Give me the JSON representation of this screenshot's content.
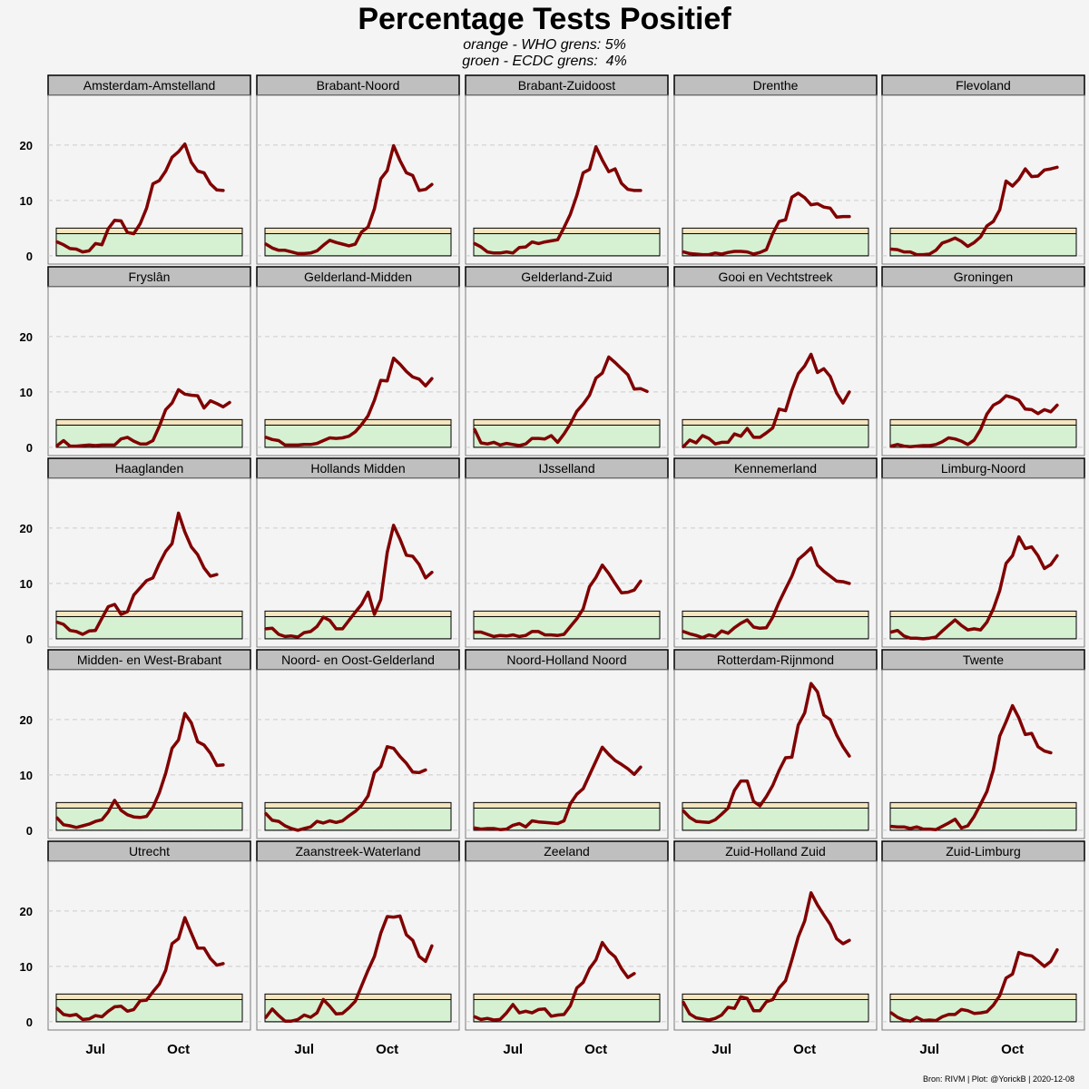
{
  "title": "Percentage Tests Positief",
  "subtitle_line1": "orange - WHO grens: 5%",
  "subtitle_line2": "groen - ECDC grens:  4%",
  "source": "Bron: RIVM | Plot: @YorickB |  2020-12-08",
  "colors": {
    "line": "#800000",
    "who_band": "#f5e6bf",
    "ecdc_band": "#d6f0d2",
    "strip": "#bfbfbf",
    "panel_bg": "#f4f4f4",
    "grid": "#cccccc"
  },
  "chart_data": {
    "type": "line",
    "title": "Percentage Tests Positief",
    "ylim": [
      -1.5,
      29
    ],
    "y_ticks": [
      0,
      10,
      20
    ],
    "x_ticks": [
      "Jul",
      "Oct"
    ],
    "x_tick_positions": [
      6,
      19
    ],
    "x_range": [
      0,
      28
    ],
    "grid": "horizontal dashed",
    "thresholds": [
      {
        "label": "orange - WHO grens: 5%",
        "value": 5
      },
      {
        "label": "groen - ECDC grens:  4%",
        "value": 4
      }
    ],
    "panels": [
      {
        "name": "Amsterdam-Amstelland",
        "values": [
          2.5,
          2.0,
          1.3,
          1.2,
          0.7,
          0.9,
          2.2,
          2.0,
          4.9,
          6.4,
          6.3,
          4.2,
          4.0,
          5.8,
          8.6,
          13.0,
          13.6,
          15.3,
          17.8,
          18.8,
          20.2,
          16.9,
          15.3,
          15.0,
          13.0,
          11.9,
          11.8
        ]
      },
      {
        "name": "Brabant-Noord",
        "values": [
          2.1,
          1.4,
          1.0,
          1.0,
          0.7,
          0.4,
          0.4,
          0.5,
          0.9,
          1.9,
          2.8,
          2.4,
          2.1,
          1.8,
          2.1,
          4.3,
          5.2,
          8.5,
          13.9,
          15.4,
          19.9,
          17.2,
          15.0,
          14.5,
          11.8,
          12.0,
          12.9
        ]
      },
      {
        "name": "Brabant-Zuidoost",
        "values": [
          2.2,
          1.6,
          0.7,
          0.5,
          0.5,
          0.7,
          0.5,
          1.5,
          1.6,
          2.5,
          2.2,
          2.5,
          2.7,
          2.9,
          5.1,
          7.5,
          10.9,
          15.0,
          15.6,
          19.7,
          17.3,
          15.2,
          15.7,
          13.1,
          12.0,
          11.8,
          11.8
        ]
      },
      {
        "name": "Drenthe",
        "values": [
          0.7,
          0.4,
          0.3,
          0.2,
          0.2,
          0.5,
          0.3,
          0.6,
          0.8,
          0.8,
          0.7,
          0.3,
          0.6,
          1.1,
          4.0,
          6.2,
          6.5,
          10.6,
          11.3,
          10.5,
          9.2,
          9.4,
          8.8,
          8.6,
          7.0,
          7.1,
          7.1
        ]
      },
      {
        "name": "Flevoland",
        "values": [
          1.2,
          1.1,
          0.7,
          0.7,
          0.2,
          0.2,
          0.3,
          1.0,
          2.3,
          2.7,
          3.2,
          2.6,
          1.7,
          2.4,
          3.4,
          5.4,
          6.2,
          8.3,
          13.5,
          12.6,
          13.8,
          15.7,
          14.3,
          14.4,
          15.5,
          15.7,
          16.0
        ]
      },
      {
        "name": "Fryslân",
        "values": [
          0.3,
          1.2,
          0.2,
          0.2,
          0.3,
          0.4,
          0.3,
          0.4,
          0.4,
          0.4,
          1.5,
          1.8,
          1.1,
          0.6,
          0.6,
          1.2,
          3.8,
          6.8,
          8.0,
          10.4,
          9.6,
          9.4,
          9.3,
          7.1,
          8.4,
          7.9,
          7.3,
          8.1
        ]
      },
      {
        "name": "Gelderland-Midden",
        "values": [
          1.8,
          1.4,
          1.2,
          0.4,
          0.4,
          0.4,
          0.5,
          0.5,
          0.7,
          1.2,
          1.7,
          1.6,
          1.7,
          2.0,
          2.8,
          4.1,
          5.7,
          8.5,
          12.1,
          12.0,
          16.1,
          15.0,
          13.7,
          12.7,
          12.3,
          11.1,
          12.4
        ]
      },
      {
        "name": "Gelderland-Zuid",
        "values": [
          3.2,
          0.8,
          0.6,
          0.9,
          0.4,
          0.7,
          0.5,
          0.3,
          0.6,
          1.6,
          1.6,
          1.5,
          2.1,
          0.9,
          2.4,
          4.2,
          6.5,
          7.8,
          9.4,
          12.5,
          13.4,
          16.3,
          15.3,
          14.2,
          13.1,
          10.5,
          10.6,
          10.1
        ]
      },
      {
        "name": "Gooi en Vechtstreek",
        "values": [
          0.1,
          1.3,
          0.8,
          2.1,
          1.6,
          0.6,
          0.9,
          0.9,
          2.4,
          2.0,
          3.4,
          1.8,
          1.8,
          2.6,
          3.5,
          6.9,
          6.6,
          10.3,
          13.3,
          14.7,
          16.8,
          13.5,
          14.2,
          12.8,
          9.8,
          8.0,
          10.0
        ]
      },
      {
        "name": "Groningen",
        "values": [
          0.2,
          0.5,
          0.2,
          0.1,
          0.2,
          0.3,
          0.3,
          0.5,
          1.0,
          1.7,
          1.5,
          1.1,
          0.5,
          1.3,
          3.2,
          6.0,
          7.6,
          8.2,
          9.3,
          9.0,
          8.5,
          6.9,
          6.8,
          6.1,
          6.8,
          6.4,
          7.6
        ]
      },
      {
        "name": "Haaglanden",
        "values": [
          3.0,
          2.6,
          1.5,
          1.3,
          0.8,
          1.4,
          1.5,
          3.7,
          5.8,
          6.2,
          4.4,
          4.9,
          7.9,
          9.2,
          10.5,
          11.0,
          13.6,
          15.8,
          17.2,
          22.7,
          19.3,
          16.6,
          15.2,
          12.8,
          11.3,
          11.6
        ]
      },
      {
        "name": "Hollands Midden",
        "values": [
          1.8,
          1.9,
          0.8,
          0.4,
          0.5,
          0.3,
          1.1,
          1.3,
          2.2,
          3.9,
          3.3,
          1.8,
          1.8,
          3.3,
          4.8,
          6.2,
          8.4,
          4.4,
          7.1,
          15.6,
          20.5,
          18.0,
          15.1,
          14.9,
          13.4,
          11.0,
          12.0
        ]
      },
      {
        "name": "IJsselland",
        "values": [
          1.2,
          1.2,
          0.8,
          0.4,
          0.6,
          0.5,
          0.7,
          0.4,
          0.6,
          1.3,
          1.3,
          0.7,
          0.7,
          0.6,
          0.8,
          2.2,
          3.6,
          5.4,
          9.4,
          11.1,
          13.3,
          11.8,
          10.0,
          8.3,
          8.4,
          8.8,
          10.4
        ]
      },
      {
        "name": "Kennemerland",
        "values": [
          1.3,
          0.9,
          0.6,
          0.2,
          0.7,
          0.4,
          1.4,
          1.0,
          2.0,
          2.8,
          3.4,
          2.1,
          1.9,
          2.0,
          3.9,
          6.6,
          9.0,
          11.3,
          14.3,
          15.3,
          16.4,
          13.3,
          12.2,
          11.3,
          10.4,
          10.3,
          10.0
        ]
      },
      {
        "name": "Limburg-Noord",
        "values": [
          1.2,
          1.5,
          0.5,
          0.1,
          0.1,
          0.0,
          0.1,
          0.3,
          1.4,
          2.4,
          3.4,
          2.4,
          1.6,
          1.8,
          1.6,
          3.0,
          5.4,
          8.7,
          13.6,
          15.0,
          18.4,
          16.3,
          16.6,
          15.0,
          12.7,
          13.4,
          15.0
        ]
      },
      {
        "name": "Midden- en West-Brabant",
        "values": [
          2.2,
          1.0,
          0.8,
          0.5,
          0.8,
          1.1,
          1.6,
          1.9,
          3.3,
          5.4,
          3.6,
          2.8,
          2.4,
          2.3,
          2.5,
          4.1,
          6.8,
          10.3,
          14.8,
          16.3,
          21.1,
          19.4,
          16.0,
          15.4,
          13.9,
          11.7,
          11.8
        ]
      },
      {
        "name": "Noord- en Oost-Gelderland",
        "values": [
          3.0,
          1.8,
          1.6,
          0.8,
          0.3,
          0.0,
          0.3,
          0.6,
          1.6,
          1.3,
          1.7,
          1.4,
          1.7,
          2.6,
          3.4,
          4.5,
          6.2,
          10.4,
          11.5,
          15.1,
          14.8,
          13.3,
          12.1,
          10.5,
          10.4,
          10.9
        ]
      },
      {
        "name": "Noord-Holland Noord",
        "values": [
          0.4,
          0.2,
          0.3,
          0.3,
          0.1,
          0.2,
          0.9,
          1.2,
          0.6,
          1.7,
          1.5,
          1.4,
          1.3,
          1.2,
          1.7,
          4.8,
          6.5,
          7.5,
          10.0,
          12.5,
          15.0,
          13.7,
          12.6,
          11.9,
          11.1,
          10.1,
          11.4
        ]
      },
      {
        "name": "Rotterdam-Rijnmond",
        "values": [
          3.5,
          2.3,
          1.6,
          1.5,
          1.4,
          1.9,
          2.9,
          4.0,
          7.2,
          8.9,
          8.9,
          5.2,
          4.4,
          6.1,
          8.1,
          10.8,
          13.1,
          13.2,
          19.0,
          21.2,
          26.5,
          25.0,
          20.8,
          20.0,
          17.2,
          15.1,
          13.4
        ]
      },
      {
        "name": "Twente",
        "values": [
          0.7,
          0.6,
          0.6,
          0.3,
          0.6,
          0.2,
          0.2,
          0.1,
          0.7,
          1.3,
          2.0,
          0.4,
          0.8,
          2.5,
          4.7,
          7.0,
          10.9,
          17.0,
          19.6,
          22.5,
          20.3,
          17.3,
          17.5,
          15.1,
          14.3,
          14.0
        ]
      },
      {
        "name": "Utrecht",
        "values": [
          2.4,
          1.3,
          1.1,
          1.3,
          0.4,
          0.5,
          1.1,
          0.9,
          1.9,
          2.7,
          2.8,
          1.9,
          2.2,
          3.8,
          3.9,
          5.4,
          6.8,
          9.3,
          14.1,
          15.0,
          18.8,
          16.0,
          13.3,
          13.3,
          11.4,
          10.2,
          10.5
        ]
      },
      {
        "name": "Zaanstreek-Waterland",
        "values": [
          0.8,
          2.3,
          1.1,
          0.1,
          0.1,
          0.4,
          1.2,
          0.8,
          1.6,
          4.0,
          2.8,
          1.4,
          1.5,
          2.5,
          3.7,
          6.5,
          9.3,
          11.8,
          16.0,
          19.0,
          18.9,
          19.1,
          15.7,
          14.7,
          11.8,
          10.9,
          13.7
        ]
      },
      {
        "name": "Zeeland",
        "values": [
          0.9,
          0.4,
          0.6,
          0.3,
          0.4,
          1.6,
          3.1,
          1.6,
          1.9,
          1.6,
          2.2,
          2.3,
          1.0,
          1.2,
          1.3,
          2.9,
          6.1,
          7.1,
          9.6,
          11.2,
          14.3,
          12.7,
          11.7,
          9.6,
          8.0,
          8.7
        ]
      },
      {
        "name": "Zuid-Holland Zuid",
        "values": [
          3.5,
          1.4,
          0.7,
          0.5,
          0.3,
          0.6,
          1.2,
          2.6,
          2.4,
          4.5,
          4.2,
          2.0,
          2.0,
          3.6,
          4.0,
          6.1,
          7.4,
          11.2,
          15.3,
          18.2,
          23.3,
          21.1,
          19.3,
          17.6,
          15.0,
          14.1,
          14.7
        ]
      },
      {
        "name": "Zuid-Limburg",
        "values": [
          1.6,
          0.8,
          0.3,
          0.1,
          0.8,
          0.2,
          0.3,
          0.2,
          0.9,
          1.3,
          1.3,
          2.2,
          2.0,
          1.5,
          1.6,
          1.8,
          3.0,
          4.7,
          7.9,
          8.6,
          12.5,
          12.1,
          11.9,
          11.0,
          10.0,
          10.9,
          13.0
        ]
      }
    ]
  }
}
